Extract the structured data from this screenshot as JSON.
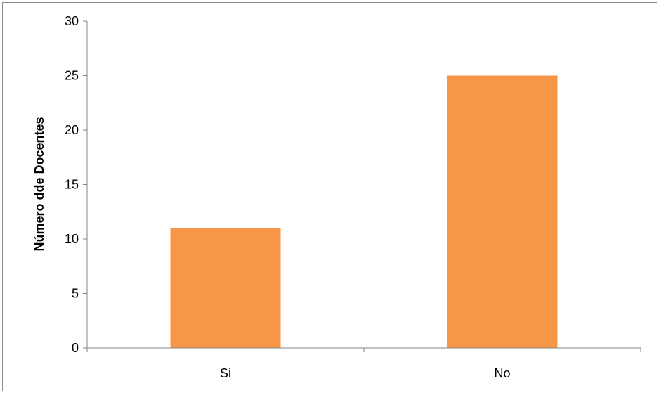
{
  "chart_data": {
    "type": "bar",
    "categories": [
      "Si",
      "No"
    ],
    "values": [
      11,
      25
    ],
    "ylabel": "Número dde Docentes",
    "xlabel": "",
    "ylim": [
      0,
      30
    ],
    "yticks": [
      0,
      5,
      10,
      15,
      20,
      25,
      30
    ],
    "grid": false,
    "legend": "none",
    "bar_color": "#F79646",
    "axis_color": "#868686"
  }
}
